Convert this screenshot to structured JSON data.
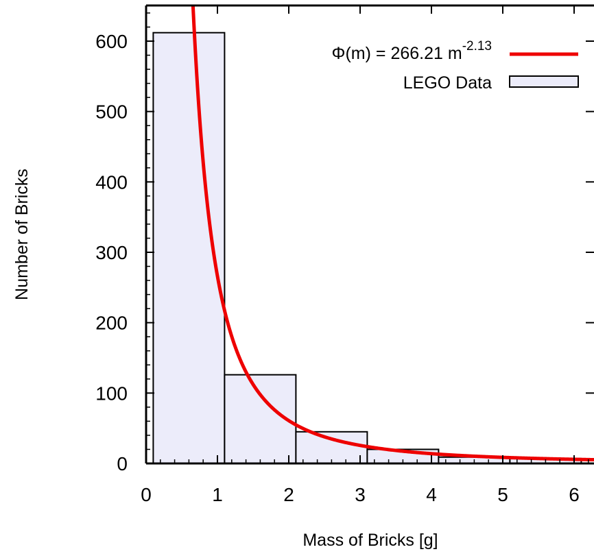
{
  "chart_data": {
    "type": "bar",
    "title": "",
    "xlabel": "Mass of Bricks [g]",
    "ylabel": "Number of Bricks",
    "xlim": [
      0,
      6.3
    ],
    "ylim": [
      0,
      650
    ],
    "x_ticks": [
      "0",
      "1",
      "2",
      "3",
      "4",
      "5",
      "6"
    ],
    "y_ticks": [
      "0",
      "100",
      "200",
      "300",
      "400",
      "500",
      "600"
    ],
    "bins": [
      {
        "x0": 0.1,
        "x1": 1.1,
        "value": 612
      },
      {
        "x0": 1.1,
        "x1": 2.1,
        "value": 126
      },
      {
        "x0": 2.1,
        "x1": 3.1,
        "value": 45
      },
      {
        "x0": 3.1,
        "x1": 4.1,
        "value": 20
      },
      {
        "x0": 4.1,
        "x1": 5.1,
        "value": 9
      },
      {
        "x0": 5.1,
        "x1": 6.1,
        "value": 7
      }
    ],
    "fit": {
      "name_prefix": "Φ(m) = 266.21 m",
      "name_exponent": "-2.13",
      "coefficient": 266.21,
      "exponent": -2.13
    },
    "legend": {
      "placement": "top-right",
      "bars_label": "LEGO Data"
    },
    "colors": {
      "bar_fill": "#ececfa",
      "bar_stroke": "#000000",
      "fit_line": "#ee0000",
      "axis": "#000000"
    },
    "grid": false
  }
}
